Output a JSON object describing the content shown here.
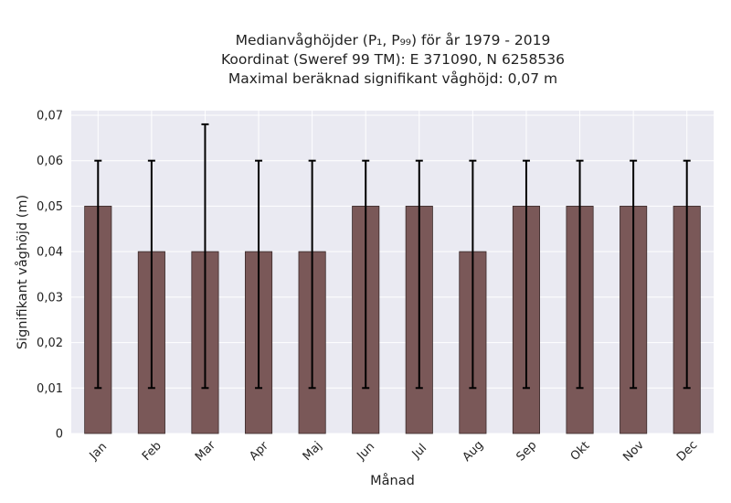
{
  "chart_data": {
    "type": "bar",
    "title_lines": [
      "Medianvåghöjder (P₁, P₉₉) för år 1979 - 2019",
      "Koordinat (Sweref 99 TM): E 371090, N 6258536",
      "Maximal beräknad signifikant våghöjd: 0,07 m"
    ],
    "xlabel": "Månad",
    "ylabel": "Signifikant våghöjd (m)",
    "categories": [
      "Jan",
      "Feb",
      "Mar",
      "Apr",
      "Maj",
      "Jun",
      "Jul",
      "Aug",
      "Sep",
      "Okt",
      "Nov",
      "Dec"
    ],
    "values": [
      0.05,
      0.04,
      0.04,
      0.04,
      0.04,
      0.05,
      0.05,
      0.04,
      0.05,
      0.05,
      0.05,
      0.05
    ],
    "error_low": [
      0.01,
      0.01,
      0.01,
      0.01,
      0.01,
      0.01,
      0.01,
      0.01,
      0.01,
      0.01,
      0.01,
      0.01
    ],
    "error_high": [
      0.06,
      0.06,
      0.068,
      0.06,
      0.06,
      0.06,
      0.06,
      0.06,
      0.06,
      0.06,
      0.06,
      0.06
    ],
    "ylim": [
      0,
      0.071
    ],
    "yticks": [
      0,
      0.01,
      0.02,
      0.03,
      0.04,
      0.05,
      0.06,
      0.07
    ],
    "ytick_labels": [
      "0",
      "0,01",
      "0,02",
      "0,03",
      "0,04",
      "0,05",
      "0,06",
      "0,07"
    ],
    "grid": true,
    "colors": {
      "bar": "#7a5858",
      "bar_edge": "#3a2a2a",
      "error_bar": "#000000",
      "plot_background": "#eaeaf2",
      "grid": "#ffffff"
    }
  }
}
